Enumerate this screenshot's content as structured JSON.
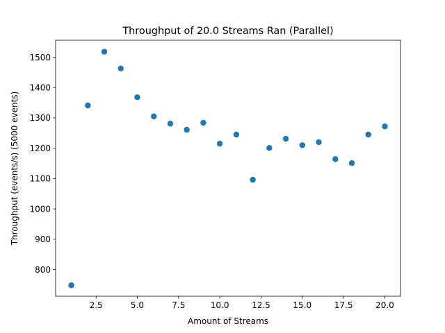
{
  "chart_data": {
    "type": "scatter",
    "title": "Throughput of 20.0 Streams Ran (Parallel)",
    "xlabel": "Amount of Streams",
    "ylabel": "Throughput (events/s) (5000 events)",
    "xlim": [
      0.05,
      20.95
    ],
    "ylim": [
      712,
      1556
    ],
    "xticks": [
      2.5,
      5.0,
      7.5,
      10.0,
      12.5,
      15.0,
      17.5,
      20.0
    ],
    "xtick_labels": [
      "2.5",
      "5.0",
      "7.5",
      "10.0",
      "12.5",
      "15.0",
      "17.5",
      "20.0"
    ],
    "yticks": [
      800,
      900,
      1000,
      1100,
      1200,
      1300,
      1400,
      1500
    ],
    "ytick_labels": [
      "800",
      "900",
      "1000",
      "1100",
      "1200",
      "1300",
      "1400",
      "1500"
    ],
    "grid": false,
    "marker_color": "#1f77b4",
    "x": [
      1,
      2,
      3,
      4,
      5,
      6,
      7,
      8,
      9,
      10,
      11,
      12,
      13,
      14,
      15,
      16,
      17,
      18,
      19,
      20
    ],
    "y": [
      748,
      1341,
      1518,
      1463,
      1368,
      1305,
      1281,
      1261,
      1284,
      1215,
      1245,
      1096,
      1201,
      1231,
      1210,
      1220,
      1164,
      1151,
      1245,
      1272
    ]
  }
}
